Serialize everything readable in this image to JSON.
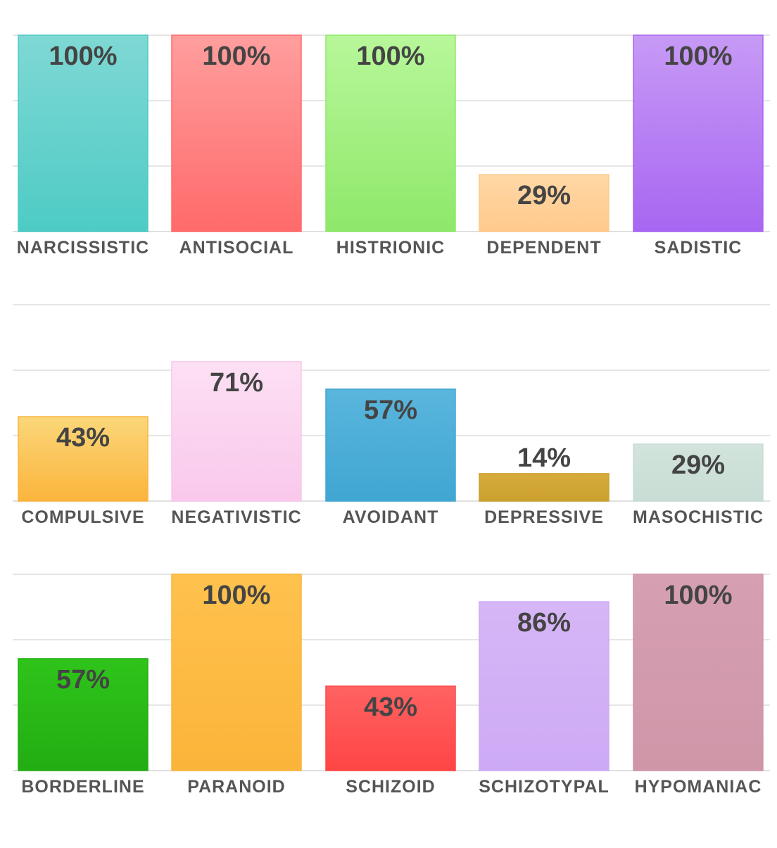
{
  "chart_data": [
    {
      "type": "bar",
      "categories": [
        "NARCISSISTIC",
        "ANTISOCIAL",
        "HISTRIONIC",
        "DEPENDENT",
        "SADISTIC"
      ],
      "values": [
        100,
        100,
        100,
        29,
        100
      ],
      "value_labels": [
        "100%",
        "100%",
        "100%",
        "29%",
        "100%"
      ],
      "colors": [
        [
          "#7fd8d4",
          "#4ecbc5"
        ],
        [
          "#ff9e9e",
          "#ff6a6a"
        ],
        [
          "#b8f79a",
          "#8ee86a"
        ],
        [
          "#ffd8a6",
          "#ffc98c"
        ],
        [
          "#c79af5",
          "#a866f2"
        ]
      ],
      "ylim": [
        0,
        100
      ]
    },
    {
      "type": "bar",
      "categories": [
        "COMPULSIVE",
        "NEGATIVISTIC",
        "AVOIDANT",
        "DEPRESSIVE",
        "MASOCHISTIC"
      ],
      "values": [
        43,
        71,
        57,
        14,
        29
      ],
      "value_labels": [
        "43%",
        "71%",
        "57%",
        "14%",
        "29%"
      ],
      "colors": [
        [
          "#fbd77a",
          "#fbb43c"
        ],
        [
          "#fde0f4",
          "#f9c8ec"
        ],
        [
          "#5ab6dd",
          "#40a6d2"
        ],
        [
          "#d6ab3c",
          "#cba02e"
        ],
        [
          "#d2e4dc",
          "#c8ddd5"
        ]
      ],
      "ylim": [
        0,
        100
      ]
    },
    {
      "type": "bar",
      "categories": [
        "BORDERLINE",
        "PARANOID",
        "SCHIZOID",
        "SCHIZOTYPAL",
        "HYPOMANIAC"
      ],
      "values": [
        57,
        100,
        43,
        86,
        100
      ],
      "value_labels": [
        "57%",
        "100%",
        "43%",
        "86%",
        "100%"
      ],
      "colors": [
        [
          "#2fc41a",
          "#22ad12"
        ],
        [
          "#ffc24e",
          "#fbb43a"
        ],
        [
          "#ff6262",
          "#ff4545"
        ],
        [
          "#d6b6f6",
          "#ceaaf5"
        ],
        [
          "#d6a0b2",
          "#cf96a8"
        ]
      ],
      "ylim": [
        0,
        100
      ]
    }
  ]
}
